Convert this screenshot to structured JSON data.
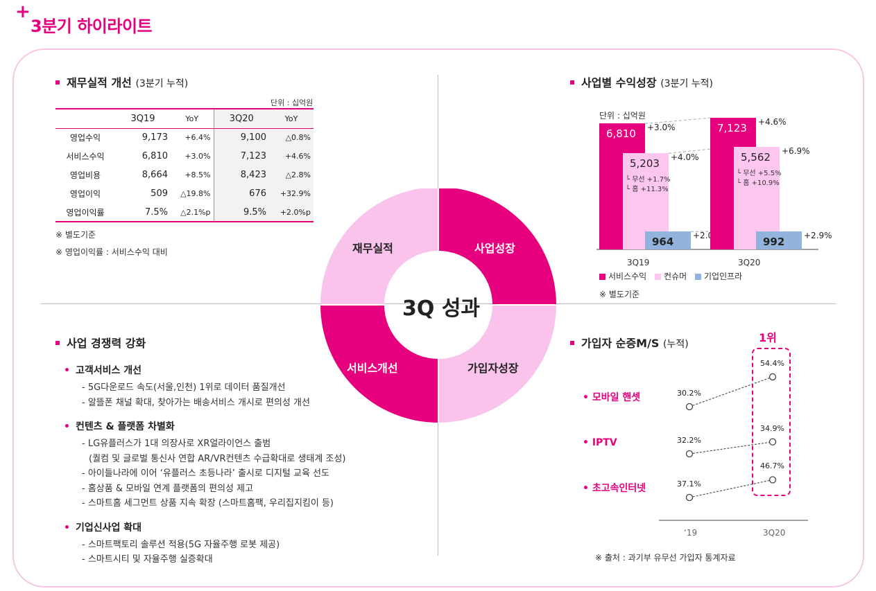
{
  "page": {
    "plus": "+",
    "title": "3분기 하이라이트"
  },
  "financial": {
    "title": "재무실적 개선",
    "title_sub": "(3분기 누적)",
    "unit": "단위 : 십억원",
    "headers": [
      "3Q19",
      "YoY",
      "3Q20",
      "YoY"
    ],
    "rows": [
      {
        "label": "영업수익",
        "q19": "9,173",
        "yoy19": "+6.4%",
        "q20": "9,100",
        "yoy20": "△0.8%"
      },
      {
        "label": "서비스수익",
        "q19": "6,810",
        "yoy19": "+3.0%",
        "q20": "7,123",
        "yoy20": "+4.6%"
      },
      {
        "label": "영업비용",
        "q19": "8,664",
        "yoy19": "+8.5%",
        "q20": "8,423",
        "yoy20": "△2.8%"
      },
      {
        "label": "영업이익",
        "q19": "509",
        "yoy19": "△19.8%",
        "q20": "676",
        "yoy20": "+32.9%"
      },
      {
        "label": "영업이익률",
        "q19": "7.5%",
        "yoy19": "△2.1%p",
        "q20": "9.5%",
        "yoy20": "+2.0%p"
      }
    ],
    "note1": "※ 별도기준",
    "note2": "※ 영업이익률 : 서비스수익 대비"
  },
  "donut": {
    "center": "3Q 성과",
    "top_left": "재무실적",
    "top_right": "사업성장",
    "bottom_left": "서비스개선",
    "bottom_right": "가입자성장",
    "colors": {
      "light": "#f9c3ec",
      "dark": "#e6007e"
    }
  },
  "revenue": {
    "title": "사업별 수익성장",
    "title_sub": "(3분기 누적)",
    "note": "※ 별도기준",
    "chart_data": {
      "type": "bar",
      "unit": "단위 : 십억원",
      "categories": [
        "3Q19",
        "3Q20"
      ],
      "series": [
        {
          "name": "서비스수익",
          "color": "#e6007e",
          "values": [
            6810,
            7123
          ],
          "labels": [
            "6,810",
            "7,123"
          ],
          "growth": [
            "+3.0%",
            "+4.6%"
          ]
        },
        {
          "name": "컨슈머",
          "color": "#fcc6ee",
          "values": [
            5203,
            5562
          ],
          "labels": [
            "5,203",
            "5,562"
          ],
          "growth": [
            "+4.0%",
            "+6.9%"
          ]
        },
        {
          "name": "기업인프라",
          "color": "#92b3dc",
          "values": [
            964,
            992
          ],
          "labels": [
            "964",
            "992"
          ],
          "growth": [
            "+2.0%",
            "+2.9%"
          ]
        }
      ],
      "consumer_breakdown": [
        {
          "wireless": "└ 무선 +1.7%",
          "home": "└ 홈 +11.3%"
        },
        {
          "wireless": "└ 무선 +5.5%",
          "home": "└ 홈 +10.9%"
        }
      ]
    }
  },
  "competitiveness": {
    "title": "사업 경쟁력 강화",
    "groups": [
      {
        "head": "고객서비스 개선",
        "lines": [
          "- 5G다운로드 속도(서울,인천) 1위로 데이터 품질개선",
          "- 알뜰폰 채널 확대, 찾아가는 배송서비스 개시로 편의성 개선"
        ]
      },
      {
        "head": "컨텐츠 & 플랫폼 차별화",
        "lines": [
          "- LG유플러스가 1대 의장사로 XR얼라이언스 출범",
          "(퀄컴 및 글로벌 통신사 연합 AR/VR컨텐츠 수급확대로 생태계 조성)",
          "- 아이들나라에 이어 ‘유플러스 초등나라’ 출시로 디지털 교육 선도",
          "- 홈상품 & 모바일 연계 플랫폼의 편의성 제고",
          "- 스마트홈 세그먼트 상품 지속 확장 (스마트홈팩, 우리집지킴이 등)"
        ]
      },
      {
        "head": "기업신사업 확대",
        "lines": [
          "- 스마트팩토리 솔루션 적용(5G 자율주행 로봇 제공)",
          "- 스마트시티 및 자율주행 실증확대"
        ]
      }
    ]
  },
  "subscribers": {
    "title": "가입자 순증M/S",
    "title_sub": "(누적)",
    "rank": "1위",
    "note": "※ 출처 : 과기부 유무선 가입자 통계자료",
    "chart_data": {
      "type": "line",
      "x": [
        "‘19",
        "3Q20"
      ],
      "series": [
        {
          "name": "모바일 핸셋",
          "values": [
            30.2,
            54.4
          ],
          "labels": [
            "30.2%",
            "54.4%"
          ]
        },
        {
          "name": "IPTV",
          "values": [
            32.2,
            34.9
          ],
          "labels": [
            "32.2%",
            "34.9%"
          ]
        },
        {
          "name": "초고속인터넷",
          "values": [
            37.1,
            46.7
          ],
          "labels": [
            "37.1%",
            "46.7%"
          ]
        }
      ]
    }
  }
}
